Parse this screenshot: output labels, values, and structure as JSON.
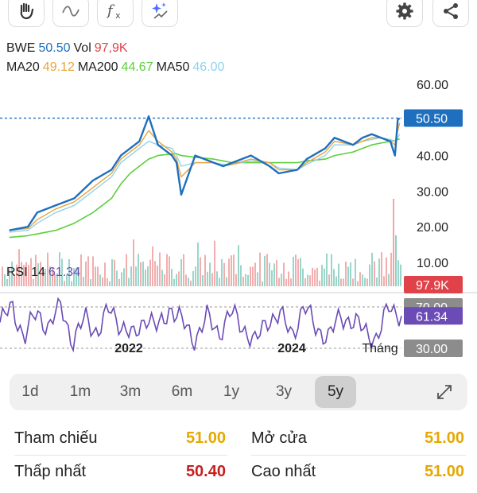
{
  "toolbar": {
    "left_icons": [
      "hand-icon",
      "wave-icon",
      "function-icon",
      "sparkle-icon"
    ],
    "right_icons": [
      "gear-icon",
      "share-icon"
    ]
  },
  "legend": {
    "symbol": "BWE",
    "price": "50.50",
    "vol_label": "Vol",
    "vol_value": "97,9K",
    "ma20_label": "MA20",
    "ma20_value": "49.12",
    "ma200_label": "MA200",
    "ma200_value": "44.67",
    "ma50_label": "MA50",
    "ma50_value": "46.00",
    "rsi_label": "RSI 14",
    "rsi_value": "61.34"
  },
  "price_tags": {
    "last_price": "50.50",
    "last_volume": "97.9K",
    "rsi_upper": "70.00",
    "rsi_current": "61.34",
    "rsi_lower": "30.00"
  },
  "colors": {
    "price_line": "#1f6fbf",
    "ma20": "#e8a33a",
    "ma50": "#8fd3ee",
    "ma200": "#5ccf3c",
    "rsi": "#6b4bb5",
    "vol_up": "#8fd0c4",
    "vol_down": "#f1a5a5",
    "tag_price": "#1f6fbf",
    "tag_volume": "#e0424a",
    "tag_rsi": "#6b4bb5",
    "tag_grey": "#8c8c8c",
    "val_yellow": "#e6a700",
    "val_red": "#c81e1e"
  },
  "chart_data": [
    {
      "type": "line",
      "series": [
        {
          "name": "BWE",
          "x": [
            2020.7,
            2020.9,
            2021.0,
            2021.2,
            2021.4,
            2021.6,
            2021.8,
            2021.9,
            2022.0,
            2022.1,
            2022.2,
            2022.3,
            2022.45,
            2022.5,
            2022.55,
            2022.7,
            2022.9,
            2023.0,
            2023.1,
            2023.3,
            2023.5,
            2023.6,
            2023.8,
            2023.9,
            2024.1,
            2024.2,
            2024.4,
            2024.5,
            2024.6,
            2024.7,
            2024.8,
            2024.85,
            2024.88,
            2024.9
          ],
          "values": [
            19,
            20,
            24,
            26,
            28,
            33,
            36,
            40,
            42,
            44,
            51,
            43,
            40,
            38,
            29,
            40,
            38,
            37,
            38,
            40,
            37,
            35,
            36,
            39,
            42,
            45,
            43,
            45,
            46,
            45,
            44,
            40,
            50,
            50.5
          ]
        },
        {
          "name": "MA20",
          "values": [
            19,
            19.5,
            22,
            25,
            27,
            31,
            35,
            39,
            41,
            43,
            47,
            44,
            41,
            39,
            34,
            38,
            38,
            37,
            37.5,
            39,
            38,
            36,
            36,
            38,
            41,
            44,
            43,
            44,
            45,
            45,
            44,
            43,
            47,
            49.12
          ]
        },
        {
          "name": "MA50",
          "values": [
            18.5,
            19,
            21,
            24,
            26,
            30,
            34,
            38,
            40,
            42,
            44,
            43,
            42,
            40,
            37,
            38,
            38,
            37.5,
            37.5,
            38.5,
            38,
            36.5,
            36,
            37.5,
            40,
            43,
            43,
            44,
            44.5,
            45,
            44.5,
            44,
            45,
            46
          ]
        },
        {
          "name": "MA200",
          "values": [
            17,
            17.5,
            18,
            19,
            21,
            24,
            28,
            32,
            35,
            37,
            39,
            40,
            40.5,
            40.5,
            40,
            39.5,
            39,
            38.5,
            38,
            38,
            38,
            38,
            38,
            38.5,
            39,
            40,
            41,
            42,
            43,
            43.5,
            44,
            44.2,
            44.5,
            44.67
          ]
        }
      ],
      "x_ticks": [
        "2022",
        "2024",
        "Tháng"
      ],
      "y_ticks": [
        "60.00",
        "50.00",
        "40.00",
        "30.00",
        "20.00",
        "10.00"
      ],
      "ylim": [
        0,
        62
      ],
      "grid": false
    },
    {
      "type": "line",
      "series": [
        {
          "name": "RSI 14",
          "values": [
            55,
            70,
            40,
            65,
            50,
            72,
            35,
            60,
            45,
            68,
            52,
            40,
            62,
            48,
            70,
            55,
            38,
            60,
            45,
            65,
            50,
            35,
            58,
            62,
            44,
            70,
            50,
            40,
            62,
            55,
            48,
            38,
            72,
            61.34
          ]
        }
      ],
      "y_ticks": [
        "70.00",
        "30.00"
      ],
      "ylim": [
        20,
        80
      ]
    }
  ],
  "ranges": {
    "buttons": [
      "1d",
      "1m",
      "3m",
      "6m",
      "1y",
      "3y",
      "5y"
    ],
    "active": "5y"
  },
  "stats": {
    "row1": {
      "left_label": "Tham chiếu",
      "left_value": "51.00",
      "right_label": "Mở cửa",
      "right_value": "51.00"
    },
    "row2": {
      "left_label": "Thấp nhất",
      "left_value": "50.40",
      "right_label": "Cao nhất",
      "right_value": "51.00"
    }
  }
}
